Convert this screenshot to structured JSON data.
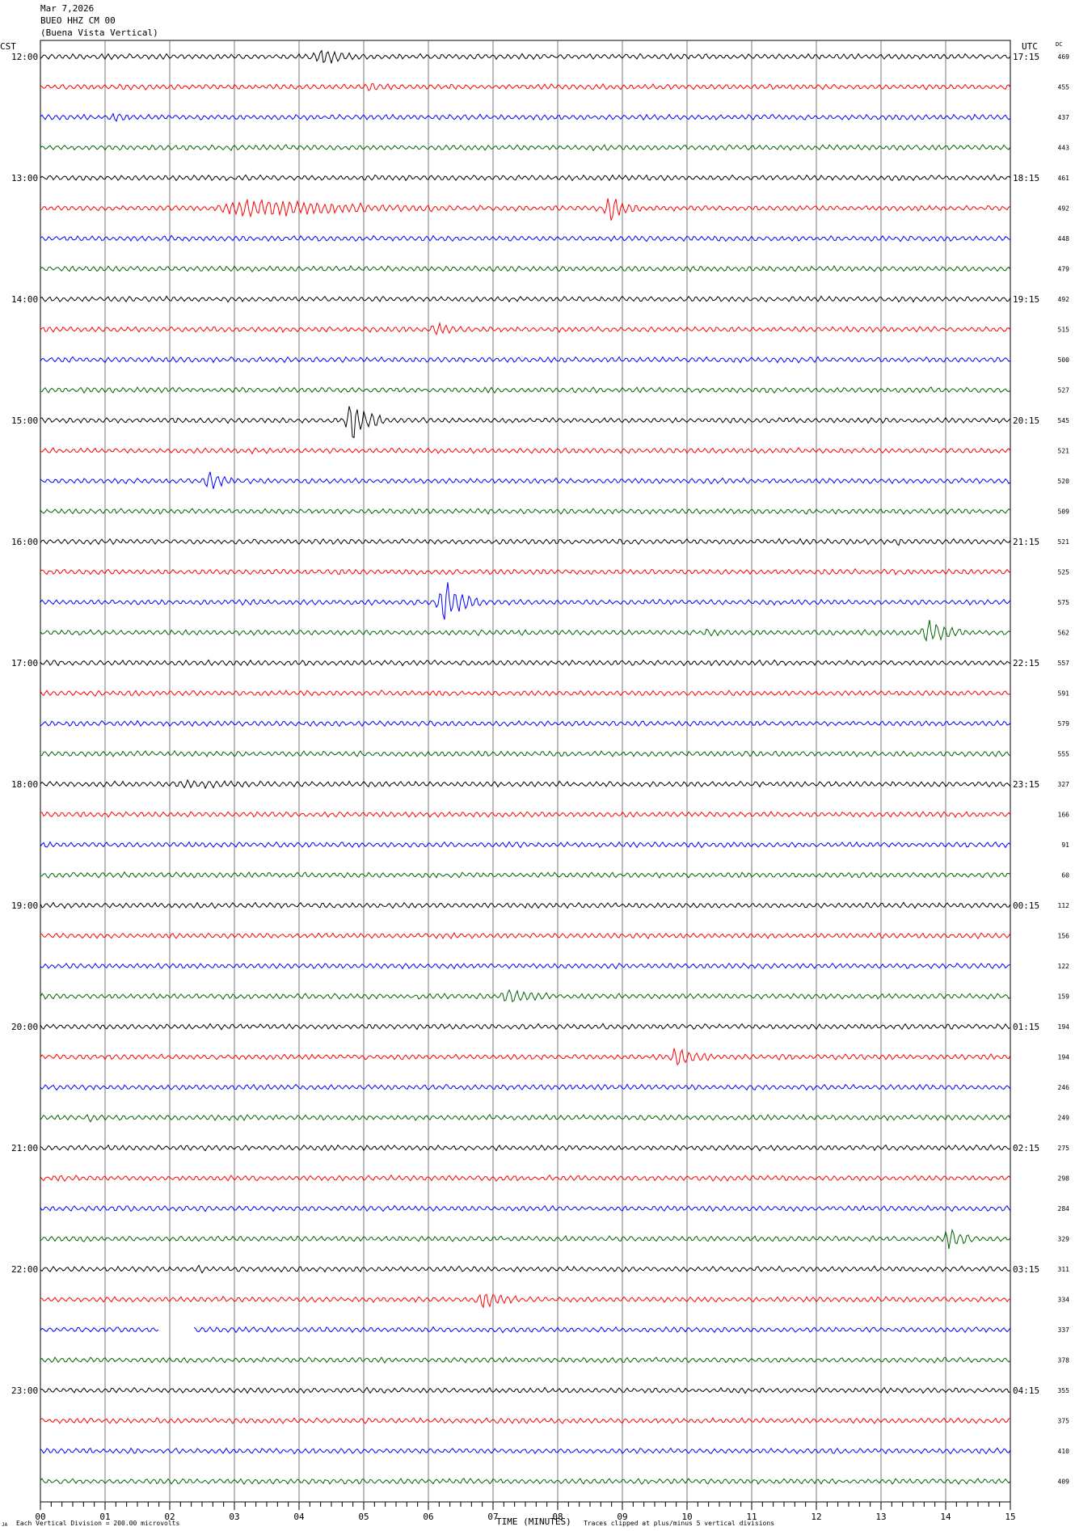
{
  "header": {
    "date": "Mar 7,2026",
    "station": "BUEO HHZ CM 00",
    "site": "(Buena Vista Vertical)"
  },
  "left_axis_title": "CST",
  "right_axis_title": "UTC",
  "dc_title": "DC",
  "footer": {
    "left_note": "Each Vertical Division =  200.00 microvolts",
    "x_title": "TIME (MINUTES)",
    "right_note": "Traces clipped at plus/minus 5 vertical divisions",
    "corner_mark": "JA"
  },
  "chart_data": {
    "type": "line",
    "title": "",
    "xlabel": "TIME (MINUTES)",
    "xlim": [
      0,
      15
    ],
    "x_ticks": [
      "00",
      "01",
      "02",
      "03",
      "04",
      "05",
      "06",
      "07",
      "08",
      "09",
      "10",
      "11",
      "12",
      "13",
      "14",
      "15"
    ],
    "trace_colors": [
      "#000000",
      "#ff0000",
      "#0000ff",
      "#006400"
    ],
    "left_hour_labels": [
      "12:00",
      "13:00",
      "14:00",
      "15:00",
      "16:00",
      "17:00",
      "18:00",
      "19:00",
      "20:00",
      "21:00",
      "22:00",
      "23:00"
    ],
    "right_hour_labels": [
      "17:15",
      "18:15",
      "19:15",
      "20:15",
      "21:15",
      "22:15",
      "23:15",
      "00:15",
      "01:15",
      "02:15",
      "03:15",
      "04:15"
    ],
    "dc_offsets": [
      469,
      455,
      437,
      443,
      461,
      492,
      448,
      479,
      492,
      515,
      500,
      527,
      545,
      521,
      520,
      509,
      521,
      525,
      575,
      562,
      557,
      591,
      579,
      555,
      327,
      166,
      91,
      60,
      112,
      156,
      122,
      159,
      194,
      194,
      246,
      249,
      275,
      298,
      284,
      329,
      311,
      334,
      337,
      378,
      355,
      375,
      410,
      409
    ],
    "events": [
      {
        "trace": 0,
        "start_min": 4.2,
        "end_min": 5.0,
        "amp": 1.5
      },
      {
        "trace": 1,
        "start_min": 5.0,
        "end_min": 5.5,
        "amp": 0.6
      },
      {
        "trace": 2,
        "start_min": 1.1,
        "end_min": 1.4,
        "amp": 0.7
      },
      {
        "trace": 5,
        "start_min": 2.6,
        "end_min": 6.2,
        "amp": 1.8
      },
      {
        "trace": 5,
        "start_min": 8.7,
        "end_min": 9.3,
        "amp": 2.5
      },
      {
        "trace": 9,
        "start_min": 6.0,
        "end_min": 6.6,
        "amp": 1.2
      },
      {
        "trace": 12,
        "start_min": 4.7,
        "end_min": 5.3,
        "amp": 5.0
      },
      {
        "trace": 14,
        "start_min": 2.5,
        "end_min": 3.0,
        "amp": 2.0
      },
      {
        "trace": 16,
        "start_min": 13.25,
        "end_min": 13.3,
        "amp": 3.0
      },
      {
        "trace": 18,
        "start_min": 6.1,
        "end_min": 6.8,
        "amp": 5.0
      },
      {
        "trace": 19,
        "start_min": 10.25,
        "end_min": 10.4,
        "amp": 1.0
      },
      {
        "trace": 19,
        "start_min": 13.6,
        "end_min": 14.3,
        "amp": 2.5
      },
      {
        "trace": 24,
        "start_min": 2.0,
        "end_min": 3.6,
        "amp": 0.5
      },
      {
        "trace": 31,
        "start_min": 7.1,
        "end_min": 7.9,
        "amp": 1.5
      },
      {
        "trace": 33,
        "start_min": 9.7,
        "end_min": 10.4,
        "amp": 2.0
      },
      {
        "trace": 35,
        "start_min": 0.7,
        "end_min": 1.0,
        "amp": 0.6
      },
      {
        "trace": 39,
        "start_min": 8.1,
        "end_min": 8.2,
        "amp": 0.8
      },
      {
        "trace": 39,
        "start_min": 13.95,
        "end_min": 14.5,
        "amp": 2.5
      },
      {
        "trace": 40,
        "start_min": 2.4,
        "end_min": 2.7,
        "amp": 0.6
      },
      {
        "trace": 41,
        "start_min": 6.7,
        "end_min": 7.4,
        "amp": 1.5
      }
    ],
    "gaps": [
      {
        "trace": 42,
        "start_min": 1.85,
        "end_min": 2.35
      }
    ],
    "grid": true
  }
}
